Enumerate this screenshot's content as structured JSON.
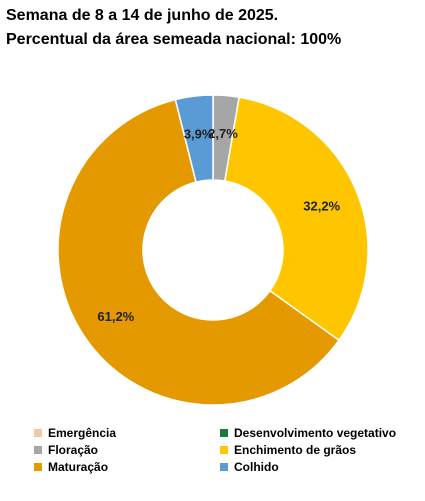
{
  "title_lines": [
    "Semana de 8 a 14 de junho de 2025.",
    "Percentual da área semeada nacional: 100%"
  ],
  "chart_data": {
    "type": "pie",
    "donut": true,
    "categories": [
      "Emergência",
      "Desenvolvimento vegetativo",
      "Floração",
      "Enchimento de grãos",
      "Maturação",
      "Colhido"
    ],
    "values": [
      0,
      0,
      2.7,
      32.2,
      61.2,
      3.9
    ],
    "data_labels": [
      "",
      "",
      "2,7%",
      "32,2%",
      "61,2%",
      "3,9%"
    ],
    "colors": [
      "#f4c7ab",
      "#1a7a3a",
      "#a6a6a6",
      "#ffc600",
      "#e59900",
      "#5b9bd5"
    ],
    "legend_position": "bottom"
  }
}
